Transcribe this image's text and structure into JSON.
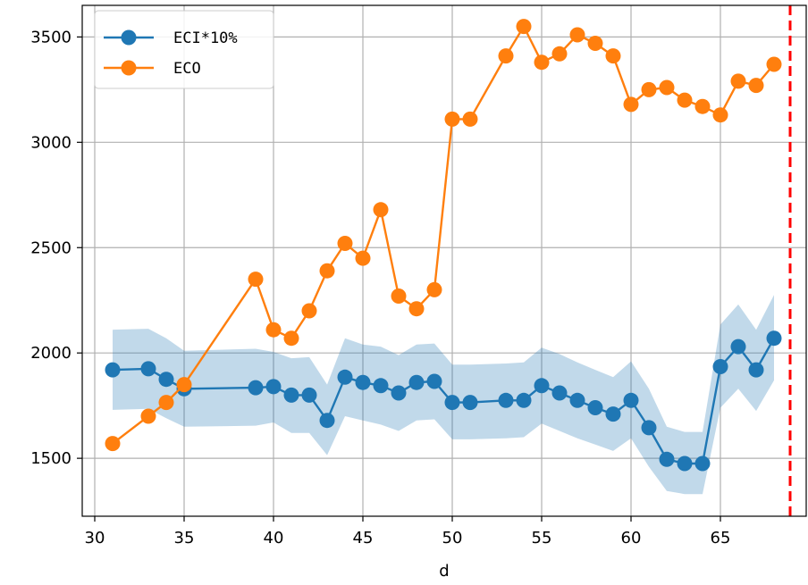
{
  "colors": {
    "eci_series": "#1f77b4",
    "eco_series": "#ff7f0e",
    "eci_band": "#1f77b4",
    "vline": "#ff0000",
    "grid": "#b0b0b0",
    "axis": "#000000"
  },
  "chart_data": {
    "type": "line",
    "title": "",
    "xlabel": "d",
    "ylabel": "",
    "xlim": [
      29.3,
      69.8
    ],
    "ylim": [
      1225,
      3650
    ],
    "x_ticks": [
      30,
      35,
      40,
      45,
      50,
      55,
      60,
      65
    ],
    "y_ticks": [
      1500,
      2000,
      2500,
      3000,
      3500
    ],
    "grid": true,
    "legend_position": "upper left",
    "vertical_line": {
      "x": 68.9,
      "style": "dashed",
      "color": "#ff0000"
    },
    "series": [
      {
        "name": "ECI*10%",
        "color": "#1f77b4",
        "marker": "circle",
        "points": [
          [
            31,
            1920
          ],
          [
            33,
            1925
          ],
          [
            34,
            1875
          ],
          [
            35,
            1830
          ],
          [
            39,
            1835
          ],
          [
            40,
            1840
          ],
          [
            41,
            1800
          ],
          [
            42,
            1800
          ],
          [
            43,
            1680
          ],
          [
            44,
            1885
          ],
          [
            45,
            1860
          ],
          [
            46,
            1845
          ],
          [
            47,
            1810
          ],
          [
            48,
            1860
          ],
          [
            49,
            1865
          ],
          [
            50,
            1765
          ],
          [
            51,
            1765
          ],
          [
            53,
            1775
          ],
          [
            54,
            1775
          ],
          [
            55,
            1845
          ],
          [
            56,
            1810
          ],
          [
            57,
            1775
          ],
          [
            58,
            1740
          ],
          [
            59,
            1710
          ],
          [
            60,
            1775
          ],
          [
            61,
            1645
          ],
          [
            62,
            1495
          ],
          [
            63,
            1475
          ],
          [
            64,
            1475
          ],
          [
            65,
            1935
          ],
          [
            66,
            2030
          ],
          [
            67,
            1920
          ],
          [
            68,
            2070
          ]
        ],
        "band": {
          "upper": [
            [
              31,
              2110
            ],
            [
              33,
              2115
            ],
            [
              34,
              2070
            ],
            [
              35,
              2010
            ],
            [
              39,
              2020
            ],
            [
              40,
              2005
            ],
            [
              41,
              1975
            ],
            [
              42,
              1980
            ],
            [
              43,
              1850
            ],
            [
              44,
              2070
            ],
            [
              45,
              2040
            ],
            [
              46,
              2030
            ],
            [
              47,
              1990
            ],
            [
              48,
              2040
            ],
            [
              49,
              2045
            ],
            [
              50,
              1945
            ],
            [
              51,
              1945
            ],
            [
              53,
              1950
            ],
            [
              54,
              1955
            ],
            [
              55,
              2025
            ],
            [
              56,
              1995
            ],
            [
              57,
              1955
            ],
            [
              58,
              1920
            ],
            [
              59,
              1885
            ],
            [
              60,
              1960
            ],
            [
              61,
              1830
            ],
            [
              62,
              1650
            ],
            [
              63,
              1625
            ],
            [
              64,
              1625
            ],
            [
              65,
              2135
            ],
            [
              66,
              2230
            ],
            [
              67,
              2110
            ],
            [
              68,
              2275
            ]
          ],
          "lower": [
            [
              31,
              1730
            ],
            [
              33,
              1735
            ],
            [
              34,
              1690
            ],
            [
              35,
              1650
            ],
            [
              39,
              1655
            ],
            [
              40,
              1670
            ],
            [
              41,
              1620
            ],
            [
              42,
              1620
            ],
            [
              43,
              1515
            ],
            [
              44,
              1700
            ],
            [
              45,
              1680
            ],
            [
              46,
              1660
            ],
            [
              47,
              1630
            ],
            [
              48,
              1680
            ],
            [
              49,
              1685
            ],
            [
              50,
              1590
            ],
            [
              51,
              1590
            ],
            [
              53,
              1595
            ],
            [
              54,
              1600
            ],
            [
              55,
              1665
            ],
            [
              56,
              1630
            ],
            [
              57,
              1595
            ],
            [
              58,
              1565
            ],
            [
              59,
              1535
            ],
            [
              60,
              1595
            ],
            [
              61,
              1460
            ],
            [
              62,
              1345
            ],
            [
              63,
              1330
            ],
            [
              64,
              1330
            ],
            [
              65,
              1740
            ],
            [
              66,
              1830
            ],
            [
              67,
              1725
            ],
            [
              68,
              1870
            ]
          ]
        }
      },
      {
        "name": "ECO",
        "color": "#ff7f0e",
        "marker": "circle",
        "points": [
          [
            31,
            1570
          ],
          [
            33,
            1700
          ],
          [
            34,
            1765
          ],
          [
            35,
            1850
          ],
          [
            39,
            2350
          ],
          [
            40,
            2110
          ],
          [
            41,
            2070
          ],
          [
            42,
            2200
          ],
          [
            43,
            2390
          ],
          [
            44,
            2520
          ],
          [
            45,
            2450
          ],
          [
            46,
            2680
          ],
          [
            47,
            2270
          ],
          [
            48,
            2210
          ],
          [
            49,
            2300
          ],
          [
            50,
            3110
          ],
          [
            51,
            3110
          ],
          [
            53,
            3410
          ],
          [
            54,
            3550
          ],
          [
            55,
            3380
          ],
          [
            56,
            3420
          ],
          [
            57,
            3510
          ],
          [
            58,
            3470
          ],
          [
            59,
            3410
          ],
          [
            60,
            3180
          ],
          [
            61,
            3250
          ],
          [
            62,
            3260
          ],
          [
            63,
            3200
          ],
          [
            64,
            3170
          ],
          [
            65,
            3130
          ],
          [
            66,
            3290
          ],
          [
            67,
            3270
          ],
          [
            68,
            3370
          ]
        ]
      }
    ]
  }
}
